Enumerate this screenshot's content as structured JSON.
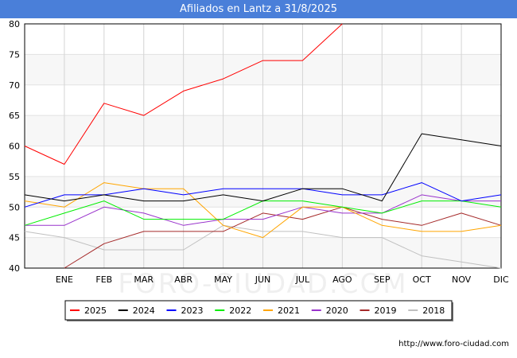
{
  "chart_data": {
    "type": "line",
    "title": "Afiliados en Lantz a 31/8/2025",
    "categories": [
      "",
      "ENE",
      "FEB",
      "MAR",
      "ABR",
      "MAY",
      "JUN",
      "JUL",
      "AGO",
      "SEP",
      "OCT",
      "NOV",
      "DIC"
    ],
    "ylim": [
      40,
      80
    ],
    "yticks": [
      40,
      45,
      50,
      55,
      60,
      65,
      70,
      75,
      80
    ],
    "xlabel": "",
    "ylabel": "",
    "series": [
      {
        "name": "2025",
        "color": "#ff0000",
        "values": [
          60,
          57,
          67,
          65,
          69,
          71,
          74,
          74,
          80,
          null,
          null,
          null,
          null
        ]
      },
      {
        "name": "2024",
        "color": "#000000",
        "values": [
          52,
          51,
          52,
          51,
          51,
          52,
          51,
          53,
          53,
          51,
          62,
          61,
          60
        ]
      },
      {
        "name": "2023",
        "color": "#0000ff",
        "values": [
          50,
          52,
          52,
          53,
          52,
          53,
          53,
          53,
          52,
          52,
          54,
          51,
          52
        ]
      },
      {
        "name": "2022",
        "color": "#00ee00",
        "values": [
          47,
          49,
          51,
          48,
          48,
          48,
          51,
          51,
          50,
          49,
          51,
          51,
          50
        ]
      },
      {
        "name": "2021",
        "color": "#ffa500",
        "values": [
          51,
          50,
          54,
          53,
          53,
          47,
          45,
          50,
          50,
          47,
          46,
          46,
          47
        ]
      },
      {
        "name": "2020",
        "color": "#9933cc",
        "values": [
          47,
          47,
          50,
          49,
          47,
          48,
          48,
          50,
          49,
          49,
          52,
          51,
          51
        ]
      },
      {
        "name": "2019",
        "color": "#a52a2a",
        "values": [
          null,
          40,
          44,
          46,
          46,
          46,
          49,
          48,
          50,
          48,
          47,
          49,
          47
        ]
      },
      {
        "name": "2018",
        "color": "#c0c0c0",
        "values": [
          46,
          45,
          43,
          43,
          43,
          47,
          46,
          46,
          45,
          45,
          42,
          41,
          40
        ]
      }
    ],
    "legend_position": "bottom",
    "grid": true
  },
  "watermark": "FORO-CIUDAD.COM",
  "footer": {
    "url": "http://www.foro-ciudad.com"
  }
}
